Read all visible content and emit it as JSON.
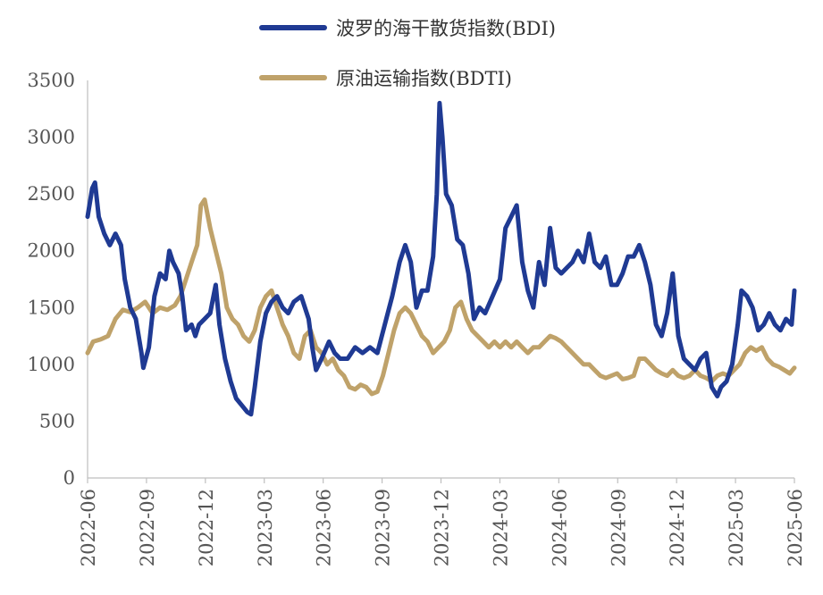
{
  "chart_data": {
    "type": "line",
    "title": "",
    "xlabel": "",
    "ylabel": "",
    "ylim": [
      0,
      3500
    ],
    "y_ticks": [
      "0",
      "500",
      "1000",
      "1500",
      "2000",
      "2500",
      "3000",
      "3500"
    ],
    "x_ticks": [
      "2022-06",
      "2022-09",
      "2022-12",
      "2023-03",
      "2023-06",
      "2023-09",
      "2023-12",
      "2024-03",
      "2024-06",
      "2024-09",
      "2024-12",
      "2025-03",
      "2025-06"
    ],
    "x_range_months": [
      0,
      36
    ],
    "legend": "top-center",
    "series": [
      {
        "name": "波罗的海干散货指数(BDI)",
        "color": "#1F3A93",
        "points": [
          [
            0,
            2300
          ],
          [
            0.25,
            2550
          ],
          [
            0.4,
            2600
          ],
          [
            0.6,
            2300
          ],
          [
            0.9,
            2150
          ],
          [
            1.2,
            2050
          ],
          [
            1.5,
            2150
          ],
          [
            1.8,
            2050
          ],
          [
            2.0,
            1750
          ],
          [
            2.3,
            1500
          ],
          [
            2.6,
            1400
          ],
          [
            2.9,
            1100
          ],
          [
            3.0,
            970
          ],
          [
            3.3,
            1150
          ],
          [
            3.6,
            1600
          ],
          [
            3.9,
            1800
          ],
          [
            4.2,
            1750
          ],
          [
            4.4,
            2000
          ],
          [
            4.6,
            1900
          ],
          [
            4.9,
            1800
          ],
          [
            5.1,
            1600
          ],
          [
            5.3,
            1300
          ],
          [
            5.6,
            1350
          ],
          [
            5.8,
            1250
          ],
          [
            6.0,
            1350
          ],
          [
            6.3,
            1400
          ],
          [
            6.6,
            1450
          ],
          [
            6.9,
            1700
          ],
          [
            7.1,
            1350
          ],
          [
            7.4,
            1050
          ],
          [
            7.7,
            850
          ],
          [
            8.0,
            700
          ],
          [
            8.3,
            640
          ],
          [
            8.6,
            580
          ],
          [
            8.8,
            560
          ],
          [
            9.0,
            800
          ],
          [
            9.3,
            1200
          ],
          [
            9.6,
            1450
          ],
          [
            9.9,
            1550
          ],
          [
            10.2,
            1600
          ],
          [
            10.5,
            1500
          ],
          [
            10.8,
            1450
          ],
          [
            11.1,
            1550
          ],
          [
            11.5,
            1600
          ],
          [
            11.9,
            1400
          ],
          [
            12.1,
            1150
          ],
          [
            12.3,
            950
          ],
          [
            12.6,
            1050
          ],
          [
            13.0,
            1200
          ],
          [
            13.3,
            1100
          ],
          [
            13.6,
            1050
          ],
          [
            14.0,
            1050
          ],
          [
            14.4,
            1150
          ],
          [
            14.8,
            1100
          ],
          [
            15.2,
            1150
          ],
          [
            15.6,
            1100
          ],
          [
            16.0,
            1350
          ],
          [
            16.4,
            1600
          ],
          [
            16.8,
            1900
          ],
          [
            17.1,
            2050
          ],
          [
            17.4,
            1900
          ],
          [
            17.7,
            1500
          ],
          [
            18.0,
            1650
          ],
          [
            18.3,
            1650
          ],
          [
            18.6,
            1950
          ],
          [
            18.8,
            2500
          ],
          [
            18.95,
            3300
          ],
          [
            19.1,
            3000
          ],
          [
            19.3,
            2500
          ],
          [
            19.6,
            2400
          ],
          [
            19.9,
            2100
          ],
          [
            20.2,
            2050
          ],
          [
            20.5,
            1800
          ],
          [
            20.8,
            1400
          ],
          [
            21.1,
            1500
          ],
          [
            21.4,
            1450
          ],
          [
            21.8,
            1600
          ],
          [
            22.2,
            1750
          ],
          [
            22.5,
            2200
          ],
          [
            22.8,
            2300
          ],
          [
            23.1,
            2400
          ],
          [
            23.4,
            1900
          ],
          [
            23.7,
            1650
          ],
          [
            24.0,
            1500
          ],
          [
            24.3,
            1900
          ],
          [
            24.6,
            1700
          ],
          [
            24.9,
            2200
          ],
          [
            25.2,
            1850
          ],
          [
            25.5,
            1800
          ],
          [
            25.8,
            1850
          ],
          [
            26.1,
            1900
          ],
          [
            26.4,
            2000
          ],
          [
            26.7,
            1900
          ],
          [
            27.0,
            2150
          ],
          [
            27.3,
            1900
          ],
          [
            27.6,
            1850
          ],
          [
            27.9,
            1950
          ],
          [
            28.2,
            1700
          ],
          [
            28.5,
            1700
          ],
          [
            28.8,
            1800
          ],
          [
            29.1,
            1950
          ],
          [
            29.4,
            1950
          ],
          [
            29.7,
            2050
          ],
          [
            30.0,
            1900
          ],
          [
            30.3,
            1700
          ],
          [
            30.6,
            1350
          ],
          [
            30.9,
            1250
          ],
          [
            31.2,
            1450
          ],
          [
            31.5,
            1800
          ],
          [
            31.8,
            1250
          ],
          [
            32.1,
            1050
          ],
          [
            32.4,
            1000
          ],
          [
            32.7,
            950
          ],
          [
            33.0,
            1050
          ],
          [
            33.3,
            1100
          ],
          [
            33.6,
            800
          ],
          [
            33.9,
            720
          ],
          [
            34.1,
            800
          ],
          [
            34.4,
            850
          ],
          [
            34.7,
            1000
          ],
          [
            35.0,
            1350
          ],
          [
            35.2,
            1650
          ],
          [
            35.5,
            1600
          ],
          [
            35.8,
            1500
          ],
          [
            36.1,
            1300
          ],
          [
            36.4,
            1350
          ],
          [
            36.7,
            1450
          ],
          [
            37.0,
            1350
          ],
          [
            37.3,
            1300
          ],
          [
            37.6,
            1400
          ],
          [
            37.9,
            1350
          ],
          [
            38.05,
            1650
          ]
        ]
      },
      {
        "name": "原油运输指数(BDTI)",
        "color": "#BFA26A",
        "points": [
          [
            0,
            1100
          ],
          [
            0.3,
            1200
          ],
          [
            0.7,
            1220
          ],
          [
            1.1,
            1250
          ],
          [
            1.5,
            1400
          ],
          [
            1.9,
            1480
          ],
          [
            2.3,
            1460
          ],
          [
            2.7,
            1500
          ],
          [
            3.1,
            1550
          ],
          [
            3.5,
            1450
          ],
          [
            3.9,
            1500
          ],
          [
            4.3,
            1480
          ],
          [
            4.7,
            1520
          ],
          [
            5.0,
            1600
          ],
          [
            5.3,
            1750
          ],
          [
            5.6,
            1900
          ],
          [
            5.9,
            2050
          ],
          [
            6.1,
            2400
          ],
          [
            6.3,
            2450
          ],
          [
            6.6,
            2200
          ],
          [
            6.9,
            2000
          ],
          [
            7.2,
            1800
          ],
          [
            7.5,
            1500
          ],
          [
            7.8,
            1400
          ],
          [
            8.1,
            1350
          ],
          [
            8.4,
            1250
          ],
          [
            8.7,
            1200
          ],
          [
            9.0,
            1300
          ],
          [
            9.3,
            1500
          ],
          [
            9.6,
            1600
          ],
          [
            9.9,
            1650
          ],
          [
            10.2,
            1500
          ],
          [
            10.5,
            1350
          ],
          [
            10.8,
            1250
          ],
          [
            11.1,
            1100
          ],
          [
            11.4,
            1050
          ],
          [
            11.7,
            1250
          ],
          [
            12.0,
            1300
          ],
          [
            12.3,
            1150
          ],
          [
            12.6,
            1100
          ],
          [
            12.9,
            1000
          ],
          [
            13.2,
            1050
          ],
          [
            13.5,
            950
          ],
          [
            13.8,
            900
          ],
          [
            14.1,
            800
          ],
          [
            14.4,
            780
          ],
          [
            14.7,
            820
          ],
          [
            15.0,
            800
          ],
          [
            15.3,
            740
          ],
          [
            15.6,
            760
          ],
          [
            15.9,
            900
          ],
          [
            16.2,
            1100
          ],
          [
            16.5,
            1300
          ],
          [
            16.8,
            1450
          ],
          [
            17.1,
            1500
          ],
          [
            17.4,
            1450
          ],
          [
            17.7,
            1350
          ],
          [
            18.0,
            1250
          ],
          [
            18.3,
            1200
          ],
          [
            18.6,
            1100
          ],
          [
            18.9,
            1150
          ],
          [
            19.2,
            1200
          ],
          [
            19.5,
            1300
          ],
          [
            19.8,
            1500
          ],
          [
            20.1,
            1550
          ],
          [
            20.4,
            1400
          ],
          [
            20.7,
            1300
          ],
          [
            21.0,
            1250
          ],
          [
            21.3,
            1200
          ],
          [
            21.6,
            1150
          ],
          [
            21.9,
            1200
          ],
          [
            22.2,
            1150
          ],
          [
            22.5,
            1200
          ],
          [
            22.8,
            1150
          ],
          [
            23.1,
            1200
          ],
          [
            23.4,
            1150
          ],
          [
            23.7,
            1100
          ],
          [
            24.0,
            1150
          ],
          [
            24.3,
            1150
          ],
          [
            24.6,
            1200
          ],
          [
            24.9,
            1250
          ],
          [
            25.2,
            1230
          ],
          [
            25.5,
            1200
          ],
          [
            25.8,
            1150
          ],
          [
            26.1,
            1100
          ],
          [
            26.4,
            1050
          ],
          [
            26.7,
            1000
          ],
          [
            27.0,
            1000
          ],
          [
            27.3,
            950
          ],
          [
            27.6,
            900
          ],
          [
            27.9,
            880
          ],
          [
            28.2,
            900
          ],
          [
            28.5,
            920
          ],
          [
            28.8,
            870
          ],
          [
            29.1,
            880
          ],
          [
            29.4,
            900
          ],
          [
            29.7,
            1050
          ],
          [
            30.0,
            1050
          ],
          [
            30.3,
            1000
          ],
          [
            30.6,
            950
          ],
          [
            30.9,
            920
          ],
          [
            31.2,
            900
          ],
          [
            31.5,
            950
          ],
          [
            31.8,
            900
          ],
          [
            32.1,
            880
          ],
          [
            32.4,
            900
          ],
          [
            32.7,
            950
          ],
          [
            33.0,
            900
          ],
          [
            33.3,
            880
          ],
          [
            33.6,
            850
          ],
          [
            33.9,
            900
          ],
          [
            34.2,
            920
          ],
          [
            34.5,
            900
          ],
          [
            34.8,
            950
          ],
          [
            35.1,
            1000
          ],
          [
            35.4,
            1100
          ],
          [
            35.7,
            1150
          ],
          [
            36.0,
            1120
          ],
          [
            36.3,
            1150
          ],
          [
            36.6,
            1050
          ],
          [
            36.9,
            1000
          ],
          [
            37.2,
            980
          ],
          [
            37.5,
            950
          ],
          [
            37.8,
            920
          ],
          [
            38.05,
            970
          ]
        ]
      }
    ]
  }
}
